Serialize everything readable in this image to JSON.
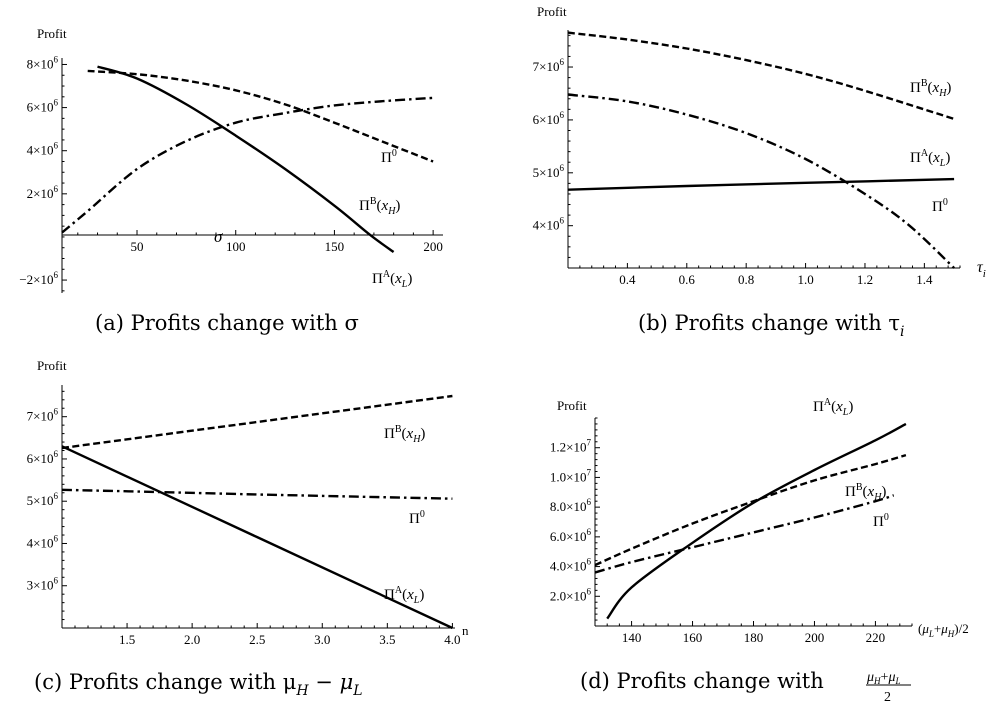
{
  "captions": [
    "(a) Profits change with σ",
    "(b) Profits change with τ",
    "(c) Profits change with μ",
    "(d) Profits change with"
  ],
  "chart_data": [
    {
      "type": "line",
      "ylabel": "Profit",
      "xlabel": "σ",
      "xlim": [
        12,
        205
      ],
      "ylim": [
        -2600000,
        8300000
      ],
      "xticks": [
        50,
        100,
        150,
        200
      ],
      "yticks": [
        -2000000,
        2000000,
        4000000,
        6000000,
        8000000
      ],
      "yticklabels": [
        "−2×10^6",
        "2×10^6",
        "4×10^6",
        "6×10^6",
        "8×10^6"
      ],
      "series": [
        {
          "name": "Π^A(x_L)",
          "style": "solid",
          "x": [
            30,
            50,
            75,
            100,
            125,
            150,
            168,
            180
          ],
          "y": [
            7900000,
            7350000,
            6150000,
            4700000,
            3150000,
            1450000,
            100000,
            -700000
          ]
        },
        {
          "name": "Π^B(x_H)",
          "style": "dashed",
          "x": [
            25,
            50,
            75,
            100,
            125,
            150,
            175,
            200
          ],
          "y": [
            7700000,
            7550000,
            7250000,
            6800000,
            6150000,
            5300000,
            4400000,
            3500000
          ]
        },
        {
          "name": "Π^0",
          "style": "dashdot",
          "x": [
            12,
            25,
            50,
            75,
            100,
            125,
            150,
            175,
            200
          ],
          "y": [
            200000,
            1200000,
            3150000,
            4450000,
            5300000,
            5750000,
            6100000,
            6300000,
            6450000
          ]
        }
      ]
    },
    {
      "type": "line",
      "ylabel": "Profit",
      "xlabel": "τ",
      "xlim": [
        0.2,
        1.52
      ],
      "ylim": [
        3200000,
        7700000
      ],
      "xticks": [
        0.4,
        0.6,
        0.8,
        1.0,
        1.2,
        1.4
      ],
      "xticklabels": [
        "0.4",
        "0.6",
        "0.8",
        "1.0",
        "1.2",
        "1.4"
      ],
      "yticks": [
        4000000,
        5000000,
        6000000,
        7000000
      ],
      "yticklabels": [
        "4×10^6",
        "5×10^6",
        "6×10^6",
        "7×10^6"
      ],
      "series": [
        {
          "name": "Π^B(x_H)",
          "style": "dashed",
          "x": [
            0.2,
            0.4,
            0.6,
            0.8,
            1.0,
            1.2,
            1.5
          ],
          "y": [
            7650000,
            7520000,
            7350000,
            7130000,
            6870000,
            6550000,
            6020000
          ]
        },
        {
          "name": "Π^A(x_L)",
          "style": "solid",
          "x": [
            0.2,
            0.6,
            1.0,
            1.5
          ],
          "y": [
            4680000,
            4750000,
            4810000,
            4880000
          ]
        },
        {
          "name": "Π^0",
          "style": "dashdot",
          "x": [
            0.2,
            0.4,
            0.6,
            0.8,
            1.0,
            1.2,
            1.35,
            1.5
          ],
          "y": [
            6480000,
            6350000,
            6100000,
            5750000,
            5260000,
            4600000,
            4000000,
            3200000
          ]
        }
      ]
    },
    {
      "type": "line",
      "ylabel": "Profit",
      "xlabel": "n",
      "xlim": [
        1.0,
        4.02
      ],
      "ylim": [
        2000000,
        7750000
      ],
      "xticks": [
        1.5,
        2.0,
        2.5,
        3.0,
        3.5,
        4.0
      ],
      "xticklabels": [
        "1.5",
        "2.0",
        "2.5",
        "3.0",
        "3.5",
        "4.0"
      ],
      "yticks": [
        3000000,
        4000000,
        5000000,
        6000000,
        7000000
      ],
      "yticklabels": [
        "3×10^6",
        "4×10^6",
        "5×10^6",
        "6×10^6",
        "7×10^6"
      ],
      "series": [
        {
          "name": "Π^B(x_H)",
          "style": "dashed",
          "x": [
            1.0,
            4.0
          ],
          "y": [
            6260000,
            7490000
          ]
        },
        {
          "name": "Π^0",
          "style": "dashdot",
          "x": [
            1.0,
            1.7,
            2.5,
            3.25,
            4.0
          ],
          "y": [
            5270000,
            5220000,
            5160000,
            5110000,
            5060000
          ]
        },
        {
          "name": "Π^A(x_L)",
          "style": "solid",
          "x": [
            1.0,
            4.0
          ],
          "y": [
            6300000,
            2000000
          ]
        }
      ]
    },
    {
      "type": "line",
      "ylabel": "Profit",
      "xlabel": "(μ_L+μ_H)/2",
      "xlim": [
        128,
        232
      ],
      "ylim": [
        0,
        14000000
      ],
      "xticks": [
        140,
        160,
        180,
        200,
        220
      ],
      "yticks": [
        2000000,
        4000000,
        6000000,
        8000000,
        10000000,
        12000000
      ],
      "yticklabels": [
        "2.0×10^6",
        "4.0×10^6",
        "6.0×10^6",
        "8.0×10^6",
        "1.0×10^7",
        "1.2×10^7"
      ],
      "series": [
        {
          "name": "Π^A(x_L)",
          "style": "solid",
          "x": [
            132,
            140,
            160,
            180,
            200,
            220,
            230
          ],
          "y": [
            500000,
            2600000,
            5600000,
            8300000,
            10500000,
            12500000,
            13600000
          ]
        },
        {
          "name": "Π^B(x_H)",
          "style": "dashed",
          "x": [
            128,
            140,
            160,
            180,
            200,
            220,
            230
          ],
          "y": [
            4100000,
            5200000,
            6900000,
            8400000,
            9800000,
            10900000,
            11500000
          ]
        },
        {
          "name": "Π^0",
          "style": "dashdot",
          "x": [
            128,
            140,
            160,
            180,
            200,
            220,
            226
          ],
          "y": [
            3600000,
            4300000,
            5300000,
            6300000,
            7300000,
            8400000,
            8800000
          ]
        }
      ]
    }
  ]
}
